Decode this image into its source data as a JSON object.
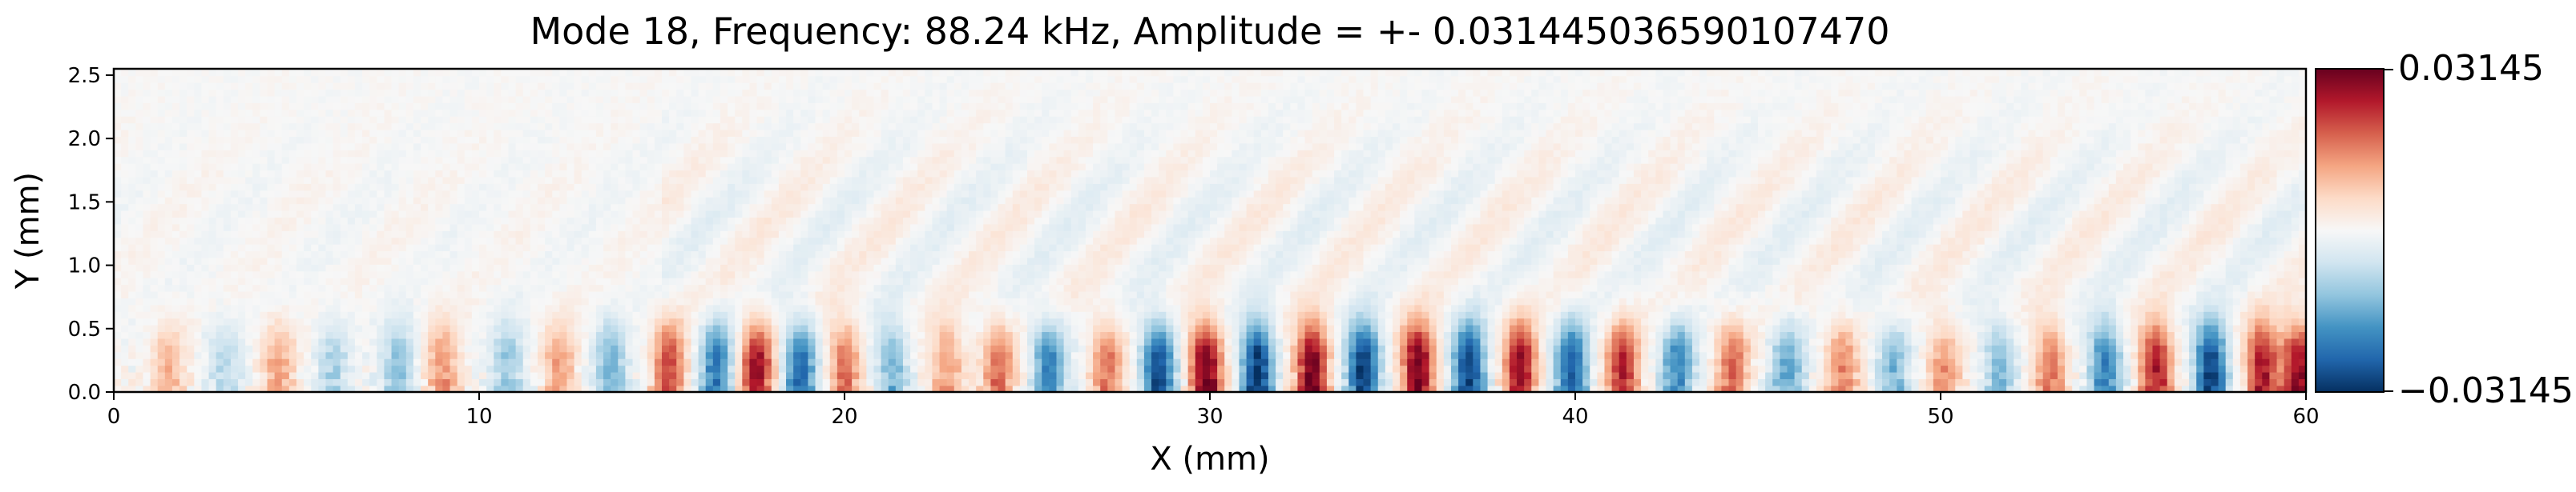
{
  "chart_data": {
    "type": "heatmap",
    "title": "Mode 18, Frequency: 88.24 kHz, Amplitude = +- 0.031445036590107470",
    "xlabel": "X (mm)",
    "ylabel": "Y (mm)",
    "xlim": [
      0,
      60
    ],
    "ylim": [
      0,
      2.55
    ],
    "x_ticks": [
      0,
      10,
      20,
      30,
      40,
      50,
      60
    ],
    "x_tick_labels": [
      "0",
      "10",
      "20",
      "30",
      "40",
      "50",
      "60"
    ],
    "y_ticks": [
      0.0,
      0.5,
      1.0,
      1.5,
      2.0,
      2.5
    ],
    "y_tick_labels": [
      "0.0",
      "0.5",
      "1.0",
      "1.5",
      "2.0",
      "2.5"
    ],
    "colormap": "RdBu_r",
    "colormap_colors": [
      "#053061",
      "#2166ac",
      "#4393c3",
      "#92c5de",
      "#d1e5f0",
      "#f7f7f7",
      "#fddbc7",
      "#f4a582",
      "#d6604d",
      "#b2182b",
      "#67001f"
    ],
    "colorbar": {
      "vmin": -0.03145,
      "vmax": 0.03145,
      "tick_labels": [
        "0.03145",
        "−0.03145"
      ]
    },
    "pattern": {
      "description_free": true,
      "column_blobs_x": [
        1.5,
        3.0,
        4.5,
        6.0,
        7.8,
        9.0,
        10.8,
        12.2,
        13.6,
        15.2,
        16.5,
        17.6,
        18.8,
        20.0,
        21.3,
        22.8,
        24.2,
        25.6,
        27.2,
        28.6,
        29.9,
        31.3,
        32.8,
        34.2,
        35.7,
        37.1,
        38.5,
        39.9,
        41.3,
        42.8,
        44.3,
        45.8,
        47.3,
        48.7,
        50.1,
        51.6,
        53.0,
        54.5,
        55.9,
        57.4,
        58.8,
        59.8
      ],
      "column_blobs_amplitude": [
        0.01,
        -0.009,
        0.012,
        -0.01,
        -0.013,
        0.014,
        -0.012,
        0.013,
        -0.015,
        0.021,
        -0.022,
        0.027,
        -0.024,
        0.018,
        -0.015,
        0.014,
        0.017,
        -0.022,
        0.018,
        -0.028,
        0.031,
        -0.031,
        0.031,
        -0.031,
        0.031,
        -0.029,
        0.027,
        -0.026,
        0.024,
        -0.02,
        0.018,
        -0.016,
        0.015,
        -0.014,
        0.014,
        -0.014,
        0.017,
        -0.022,
        0.026,
        -0.03,
        0.026,
        0.028
      ]
    }
  }
}
